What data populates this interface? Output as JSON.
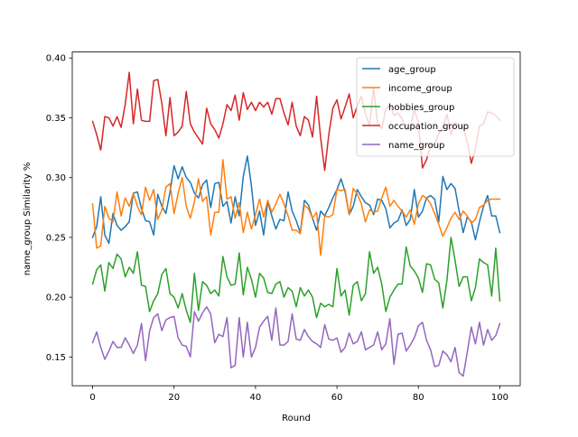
{
  "chart_data": {
    "type": "line",
    "xlabel": "Round",
    "ylabel": "name_group Similarity %",
    "xlim": [
      -5,
      105
    ],
    "ylim": [
      0.126,
      0.405
    ],
    "xticks": [
      0,
      20,
      40,
      60,
      80,
      100
    ],
    "yticks": [
      0.15,
      0.2,
      0.25,
      0.3,
      0.35,
      0.4
    ],
    "ytick_labels": [
      "0.15",
      "0.20",
      "0.25",
      "0.30",
      "0.35",
      "0.40"
    ],
    "legend_position": "top-right",
    "grid": false,
    "x": [
      0,
      1,
      2,
      3,
      4,
      5,
      6,
      7,
      8,
      9,
      10,
      11,
      12,
      13,
      14,
      15,
      16,
      17,
      18,
      19,
      20,
      21,
      22,
      23,
      24,
      25,
      26,
      27,
      28,
      29,
      30,
      31,
      32,
      33,
      34,
      35,
      36,
      37,
      38,
      39,
      40,
      41,
      42,
      43,
      44,
      45,
      46,
      47,
      48,
      49,
      50,
      51,
      52,
      53,
      54,
      55,
      56,
      57,
      58,
      59,
      60,
      61,
      62,
      63,
      64,
      65,
      66,
      67,
      68,
      69,
      70,
      71,
      72,
      73,
      74,
      75,
      76,
      77,
      78,
      79,
      80,
      81,
      82,
      83,
      84,
      85,
      86,
      87,
      88,
      89,
      90,
      91,
      92,
      93,
      94,
      95,
      96,
      97,
      98,
      99,
      100
    ],
    "series": [
      {
        "name": "age_group",
        "color": "#1f77b4",
        "values": [
          0.25,
          0.259,
          0.284,
          0.252,
          0.245,
          0.27,
          0.26,
          0.256,
          0.259,
          0.263,
          0.287,
          0.288,
          0.274,
          0.264,
          0.263,
          0.252,
          0.286,
          0.276,
          0.27,
          0.288,
          0.31,
          0.299,
          0.309,
          0.3,
          0.296,
          0.287,
          0.283,
          0.294,
          0.298,
          0.275,
          0.295,
          0.296,
          0.276,
          0.28,
          0.262,
          0.284,
          0.268,
          0.301,
          0.318,
          0.293,
          0.26,
          0.272,
          0.252,
          0.28,
          0.268,
          0.257,
          0.265,
          0.264,
          0.288,
          0.272,
          0.264,
          0.254,
          0.281,
          0.277,
          0.266,
          0.256,
          0.272,
          0.268,
          0.275,
          0.283,
          0.29,
          0.299,
          0.288,
          0.269,
          0.276,
          0.29,
          0.284,
          0.279,
          0.277,
          0.269,
          0.282,
          0.281,
          0.274,
          0.258,
          0.262,
          0.264,
          0.273,
          0.26,
          0.265,
          0.29,
          0.267,
          0.272,
          0.283,
          0.285,
          0.282,
          0.263,
          0.301,
          0.29,
          0.295,
          0.291,
          0.272,
          0.254,
          0.267,
          0.263,
          0.248,
          0.263,
          0.276,
          0.285,
          0.268,
          0.268,
          0.254
        ]
      },
      {
        "name": "income_group",
        "color": "#ff7f0e",
        "values": [
          0.278,
          0.241,
          0.243,
          0.276,
          0.266,
          0.263,
          0.288,
          0.268,
          0.283,
          0.276,
          0.287,
          0.276,
          0.269,
          0.292,
          0.281,
          0.29,
          0.265,
          0.273,
          0.292,
          0.295,
          0.27,
          0.287,
          0.3,
          0.276,
          0.266,
          0.28,
          0.299,
          0.28,
          0.284,
          0.252,
          0.271,
          0.271,
          0.315,
          0.282,
          0.284,
          0.266,
          0.279,
          0.254,
          0.271,
          0.257,
          0.269,
          0.282,
          0.267,
          0.281,
          0.271,
          0.278,
          0.286,
          0.278,
          0.268,
          0.256,
          0.256,
          0.253,
          0.277,
          0.274,
          0.266,
          0.271,
          0.235,
          0.268,
          0.267,
          0.269,
          0.29,
          0.289,
          0.29,
          0.269,
          0.291,
          0.286,
          0.278,
          0.263,
          0.273,
          0.271,
          0.272,
          0.283,
          0.292,
          0.276,
          0.281,
          0.276,
          0.272,
          0.267,
          0.273,
          0.261,
          0.278,
          0.285,
          0.283,
          0.278,
          0.27,
          0.261,
          0.251,
          0.258,
          0.266,
          0.271,
          0.265,
          0.272,
          0.268,
          0.262,
          0.265,
          0.275,
          0.277,
          0.281,
          0.282,
          0.282,
          0.282
        ]
      },
      {
        "name": "hobbies_group",
        "color": "#2ca02c",
        "values": [
          0.211,
          0.223,
          0.227,
          0.205,
          0.229,
          0.224,
          0.236,
          0.232,
          0.217,
          0.225,
          0.22,
          0.238,
          0.21,
          0.209,
          0.188,
          0.197,
          0.203,
          0.219,
          0.224,
          0.203,
          0.2,
          0.191,
          0.203,
          0.189,
          0.179,
          0.22,
          0.189,
          0.213,
          0.21,
          0.203,
          0.206,
          0.201,
          0.234,
          0.217,
          0.21,
          0.211,
          0.237,
          0.202,
          0.225,
          0.215,
          0.2,
          0.22,
          0.216,
          0.204,
          0.203,
          0.211,
          0.213,
          0.2,
          0.208,
          0.205,
          0.192,
          0.208,
          0.201,
          0.206,
          0.2,
          0.183,
          0.195,
          0.192,
          0.194,
          0.192,
          0.224,
          0.201,
          0.206,
          0.185,
          0.21,
          0.213,
          0.197,
          0.203,
          0.238,
          0.22,
          0.225,
          0.211,
          0.188,
          0.2,
          0.206,
          0.211,
          0.211,
          0.242,
          0.226,
          0.222,
          0.216,
          0.204,
          0.228,
          0.227,
          0.215,
          0.212,
          0.191,
          0.214,
          0.25,
          0.231,
          0.209,
          0.217,
          0.217,
          0.197,
          0.208,
          0.232,
          0.229,
          0.227,
          0.201,
          0.241,
          0.197
        ]
      },
      {
        "name": "occupation_group",
        "color": "#d62728",
        "values": [
          0.347,
          0.336,
          0.323,
          0.351,
          0.35,
          0.343,
          0.351,
          0.342,
          0.361,
          0.388,
          0.345,
          0.374,
          0.348,
          0.347,
          0.347,
          0.381,
          0.382,
          0.362,
          0.335,
          0.367,
          0.335,
          0.338,
          0.343,
          0.372,
          0.345,
          0.338,
          0.333,
          0.328,
          0.358,
          0.345,
          0.34,
          0.333,
          0.345,
          0.361,
          0.356,
          0.369,
          0.348,
          0.371,
          0.357,
          0.363,
          0.356,
          0.363,
          0.359,
          0.363,
          0.353,
          0.366,
          0.366,
          0.354,
          0.344,
          0.363,
          0.343,
          0.335,
          0.351,
          0.348,
          0.334,
          0.368,
          0.333,
          0.306,
          0.336,
          0.358,
          0.365,
          0.349,
          0.359,
          0.37,
          0.35,
          0.36,
          0.368,
          0.353,
          0.344,
          0.375,
          0.345,
          0.341,
          0.357,
          0.361,
          0.352,
          0.354,
          0.349,
          0.34,
          0.341,
          0.357,
          0.346,
          0.308,
          0.315,
          0.327,
          0.328,
          0.337,
          0.342,
          0.353,
          0.336,
          0.346,
          0.344,
          0.342,
          0.33,
          0.312,
          0.324,
          0.343,
          0.345,
          0.355,
          0.354,
          0.352,
          0.348
        ]
      },
      {
        "name": "name_group",
        "color": "#9467bd",
        "values": [
          0.162,
          0.171,
          0.158,
          0.148,
          0.155,
          0.163,
          0.158,
          0.158,
          0.166,
          0.16,
          0.153,
          0.16,
          0.178,
          0.147,
          0.172,
          0.183,
          0.186,
          0.172,
          0.181,
          0.183,
          0.184,
          0.166,
          0.16,
          0.159,
          0.15,
          0.188,
          0.18,
          0.187,
          0.192,
          0.186,
          0.162,
          0.169,
          0.167,
          0.183,
          0.141,
          0.143,
          0.183,
          0.15,
          0.179,
          0.15,
          0.158,
          0.175,
          0.18,
          0.184,
          0.164,
          0.191,
          0.16,
          0.16,
          0.163,
          0.186,
          0.165,
          0.164,
          0.173,
          0.167,
          0.163,
          0.161,
          0.158,
          0.177,
          0.165,
          0.164,
          0.166,
          0.154,
          0.158,
          0.17,
          0.161,
          0.163,
          0.171,
          0.156,
          0.158,
          0.16,
          0.171,
          0.156,
          0.161,
          0.182,
          0.144,
          0.169,
          0.17,
          0.155,
          0.16,
          0.166,
          0.176,
          0.179,
          0.164,
          0.156,
          0.142,
          0.143,
          0.155,
          0.152,
          0.146,
          0.158,
          0.137,
          0.134,
          0.154,
          0.175,
          0.161,
          0.179,
          0.16,
          0.173,
          0.164,
          0.168,
          0.178
        ]
      }
    ]
  }
}
